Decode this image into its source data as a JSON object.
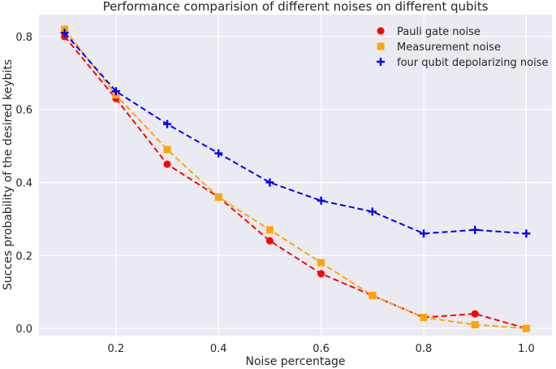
{
  "chart_data": {
    "type": "line",
    "title": "Performance comparision of different noises on different qubits",
    "xlabel": "Noise percentage",
    "ylabel": "Succes probability of the desired keybits",
    "xlim": [
      0.05,
      1.05
    ],
    "ylim": [
      -0.02,
      0.86
    ],
    "xticks": [
      0.2,
      0.4,
      0.6,
      0.8,
      1.0
    ],
    "xtick_labels": [
      "0.2",
      "0.4",
      "0.6",
      "0.8",
      "1.0"
    ],
    "yticks": [
      0.0,
      0.2,
      0.4,
      0.6,
      0.8
    ],
    "ytick_labels": [
      "0.0",
      "0.2",
      "0.4",
      "0.6",
      "0.8"
    ],
    "grid": true,
    "legend_position": "top-right",
    "x": [
      0.1,
      0.2,
      0.3,
      0.4,
      0.5,
      0.6,
      0.7,
      0.8,
      0.9,
      1.0
    ],
    "series": [
      {
        "name": "Pauli gate noise",
        "marker": "circle",
        "color": "#ff0000",
        "values": [
          0.8,
          0.63,
          0.45,
          0.36,
          0.24,
          0.15,
          0.09,
          0.03,
          0.04,
          0.0
        ]
      },
      {
        "name": "Measurement noise",
        "marker": "square",
        "color": "#ffa500",
        "values": [
          0.82,
          0.64,
          0.49,
          0.36,
          0.27,
          0.18,
          0.09,
          0.03,
          0.01,
          0.0
        ]
      },
      {
        "name": "four qubit depolarizing noise",
        "marker": "plus",
        "color": "#0000ff",
        "values": [
          0.81,
          0.65,
          0.56,
          0.48,
          0.4,
          0.35,
          0.32,
          0.26,
          0.27,
          0.26
        ]
      }
    ]
  }
}
